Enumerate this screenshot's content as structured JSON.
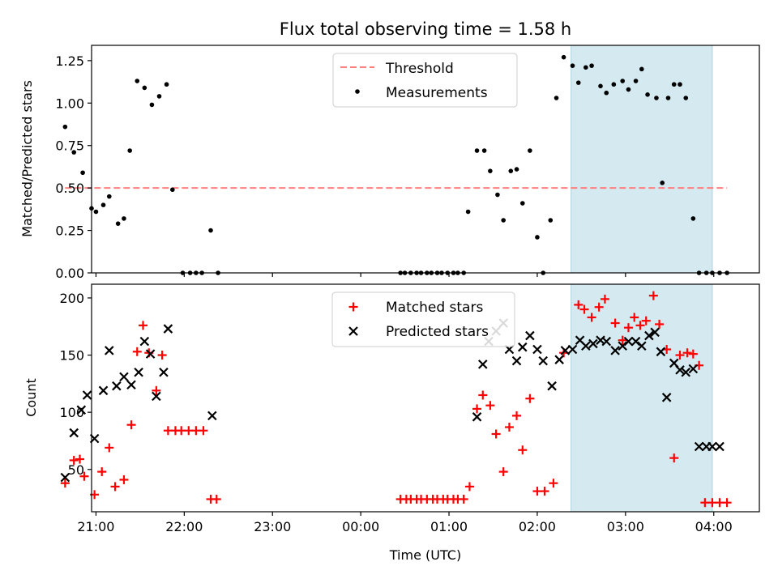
{
  "chart_data": [
    {
      "type": "scatter",
      "title": "Flux total observing time = 1.58 h",
      "xlabel": "",
      "ylabel": "Matched/Predicted stars",
      "xlim": [
        "20:57",
        "04:31"
      ],
      "ylim": [
        0,
        1.34
      ],
      "grid": false,
      "legend_position": "top-center",
      "x_ticks": [
        "21:00",
        "22:00",
        "23:00",
        "00:00",
        "01:00",
        "02:00",
        "03:00",
        "04:00"
      ],
      "y_ticks": [
        "0.00",
        "0.25",
        "0.50",
        "0.75",
        "1.00",
        "1.25"
      ],
      "highlight_span": {
        "start": "02:23",
        "end": "03:59",
        "color": "#d4eaf0"
      },
      "threshold": {
        "name": "Threshold",
        "value": 0.5,
        "x_start": "20:39",
        "x_end": "04:09",
        "color": "#ff7f7f",
        "style": "dashed"
      },
      "series": [
        {
          "name": "Measurements",
          "color": "#000000",
          "marker": "dot",
          "x": [
            "20:39",
            "20:45",
            "20:51",
            "20:57",
            "21:00",
            "21:05",
            "21:09",
            "21:15",
            "21:19",
            "21:23",
            "21:28",
            "21:33",
            "21:38",
            "21:43",
            "21:48",
            "21:52",
            "21:59",
            "22:04",
            "22:08",
            "22:12",
            "22:18",
            "22:23",
            "00:27",
            "00:30",
            "00:34",
            "00:38",
            "00:41",
            "00:45",
            "00:48",
            "00:52",
            "00:55",
            "00:59",
            "01:03",
            "01:06",
            "01:10",
            "01:13",
            "01:19",
            "01:24",
            "01:28",
            "01:33",
            "01:37",
            "01:42",
            "01:46",
            "01:50",
            "01:55",
            "02:00",
            "02:04",
            "02:09",
            "02:13",
            "02:18",
            "02:24",
            "02:28",
            "02:33",
            "02:37",
            "02:43",
            "02:47",
            "02:52",
            "02:58",
            "03:02",
            "03:07",
            "03:11",
            "03:15",
            "03:21",
            "03:25",
            "03:29",
            "03:33",
            "03:37",
            "03:41",
            "03:46",
            "03:50",
            "03:55",
            "03:59",
            "04:04",
            "04:09"
          ],
          "y": [
            0.86,
            0.71,
            0.59,
            0.38,
            0.36,
            0.4,
            0.45,
            0.29,
            0.32,
            0.72,
            1.13,
            1.09,
            0.99,
            1.04,
            1.11,
            0.49,
            0.0,
            0.0,
            0.0,
            0.0,
            0.25,
            0.0,
            0.0,
            0.0,
            0.0,
            0.0,
            0.0,
            0.0,
            0.0,
            0.0,
            0.0,
            0.0,
            0.0,
            0.0,
            0.0,
            0.36,
            0.72,
            0.72,
            0.6,
            0.46,
            0.31,
            0.6,
            0.61,
            0.41,
            0.72,
            0.21,
            0.0,
            0.31,
            1.03,
            1.27,
            1.22,
            1.12,
            1.21,
            1.22,
            1.1,
            1.06,
            1.11,
            1.13,
            1.08,
            1.13,
            1.2,
            1.05,
            1.03,
            0.53,
            1.03,
            1.11,
            1.11,
            1.03,
            0.32,
            0.0,
            0.0,
            0.0,
            0.0,
            0.0
          ]
        }
      ]
    },
    {
      "type": "scatter",
      "title": "",
      "xlabel": "Time (UTC)",
      "ylabel": "Count",
      "xlim": [
        "20:57",
        "04:31"
      ],
      "ylim": [
        13,
        212
      ],
      "grid": false,
      "legend_position": "top-center",
      "x_ticks": [
        "21:00",
        "22:00",
        "23:00",
        "00:00",
        "01:00",
        "02:00",
        "03:00",
        "04:00"
      ],
      "y_ticks": [
        "50",
        "100",
        "150",
        "200"
      ],
      "highlight_span": {
        "start": "02:23",
        "end": "03:59",
        "color": "#d4eaf0"
      },
      "series": [
        {
          "name": "Matched stars",
          "color": "#ff0000",
          "marker": "plus",
          "x": [
            "20:39",
            "20:45",
            "20:49",
            "20:52",
            "20:59",
            "21:04",
            "21:09",
            "21:13",
            "21:19",
            "21:24",
            "21:28",
            "21:32",
            "21:36",
            "21:41",
            "21:45",
            "21:49",
            "21:54",
            "21:58",
            "22:03",
            "22:08",
            "22:13",
            "22:18",
            "22:22",
            "00:27",
            "00:31",
            "00:34",
            "00:38",
            "00:41",
            "00:45",
            "00:49",
            "00:52",
            "00:56",
            "00:59",
            "01:03",
            "01:06",
            "01:10",
            "01:14",
            "01:19",
            "01:23",
            "01:28",
            "01:32",
            "01:37",
            "01:41",
            "01:46",
            "01:50",
            "01:55",
            "02:00",
            "02:05",
            "02:11",
            "02:18",
            "02:28",
            "02:32",
            "02:37",
            "02:42",
            "02:46",
            "02:53",
            "02:58",
            "03:02",
            "03:06",
            "03:10",
            "03:14",
            "03:19",
            "03:23",
            "03:28",
            "03:33",
            "03:37",
            "03:42",
            "03:46",
            "03:50",
            "03:54",
            "03:59",
            "04:04",
            "04:09"
          ],
          "y": [
            38,
            58,
            59,
            44,
            28,
            48,
            69,
            35,
            41,
            89,
            153,
            176,
            152,
            119,
            150,
            84,
            84,
            84,
            84,
            84,
            84,
            24,
            24,
            24,
            24,
            24,
            24,
            24,
            24,
            24,
            24,
            24,
            24,
            24,
            24,
            24,
            35,
            103,
            115,
            106,
            81,
            48,
            87,
            97,
            67,
            112,
            31,
            31,
            38,
            152,
            194,
            190,
            183,
            192,
            199,
            178,
            163,
            174,
            183,
            176,
            180,
            202,
            177,
            155,
            60,
            150,
            152,
            151,
            141,
            21,
            21,
            21,
            21
          ]
        },
        {
          "name": "Predicted stars",
          "color": "#000000",
          "marker": "x",
          "x": [
            "20:39",
            "20:45",
            "20:50",
            "20:54",
            "20:59",
            "21:05",
            "21:09",
            "21:14",
            "21:19",
            "21:24",
            "21:29",
            "21:33",
            "21:37",
            "21:41",
            "21:46",
            "21:49",
            "22:19",
            "01:19",
            "01:23",
            "01:27",
            "01:32",
            "01:37",
            "01:41",
            "01:46",
            "01:50",
            "01:55",
            "02:00",
            "02:04",
            "02:10",
            "02:15",
            "02:19",
            "02:24",
            "02:29",
            "02:33",
            "02:38",
            "02:43",
            "02:47",
            "02:53",
            "02:58",
            "03:02",
            "03:07",
            "03:11",
            "03:16",
            "03:20",
            "03:24",
            "03:28",
            "03:33",
            "03:37",
            "03:41",
            "03:46",
            "03:50",
            "03:55",
            "03:59",
            "04:04"
          ],
          "y": [
            43,
            82,
            102,
            115,
            77,
            119,
            154,
            123,
            131,
            124,
            135,
            162,
            151,
            114,
            135,
            173,
            97,
            96,
            142,
            162,
            171,
            178,
            155,
            145,
            157,
            167,
            155,
            145,
            123,
            146,
            154,
            155,
            163,
            158,
            160,
            163,
            162,
            154,
            158,
            162,
            162,
            158,
            167,
            170,
            153,
            113,
            143,
            137,
            135,
            138,
            70,
            70,
            70,
            70
          ]
        }
      ]
    }
  ]
}
